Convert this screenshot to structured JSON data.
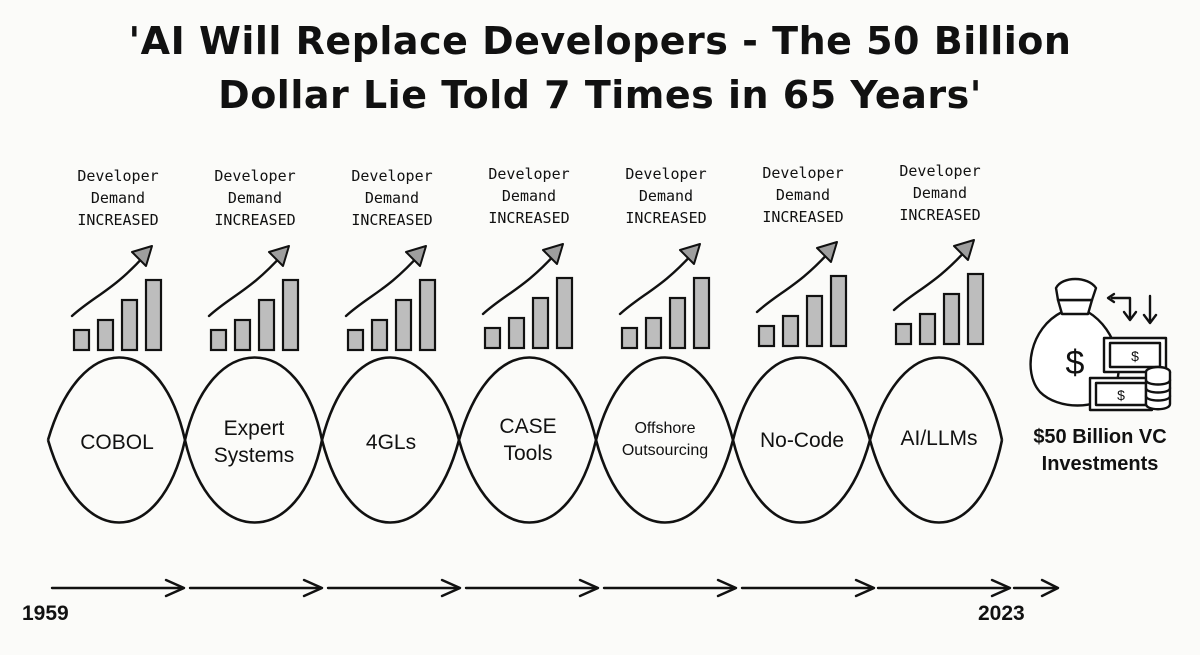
{
  "title": {
    "line1": "'AI Will Replace Developers - The 50 Billion",
    "line2": "Dollar Lie Told 7 Times in 65 Years'"
  },
  "demand_label": {
    "line1": "Developer",
    "line2": "Demand",
    "line3": "INCREASED"
  },
  "eras": [
    {
      "label_lines": [
        "COBOL"
      ]
    },
    {
      "label_lines": [
        "Expert",
        "Systems"
      ]
    },
    {
      "label_lines": [
        "4GLs"
      ]
    },
    {
      "label_lines": [
        "CASE",
        "Tools"
      ]
    },
    {
      "label_lines": [
        "Offshore",
        "Outsourcing"
      ]
    },
    {
      "label_lines": [
        "No-Code"
      ]
    },
    {
      "label_lines": [
        "AI/LLMs"
      ]
    }
  ],
  "investment": {
    "line1": "$50 Billion VC",
    "line2": "Investments",
    "icon": "money-bag-icon"
  },
  "timeline": {
    "start_year": "1959",
    "end_year": "2023"
  },
  "colors": {
    "ink": "#111111",
    "bar_fill": "#bdbdbd",
    "background": "#fbfbf9"
  }
}
